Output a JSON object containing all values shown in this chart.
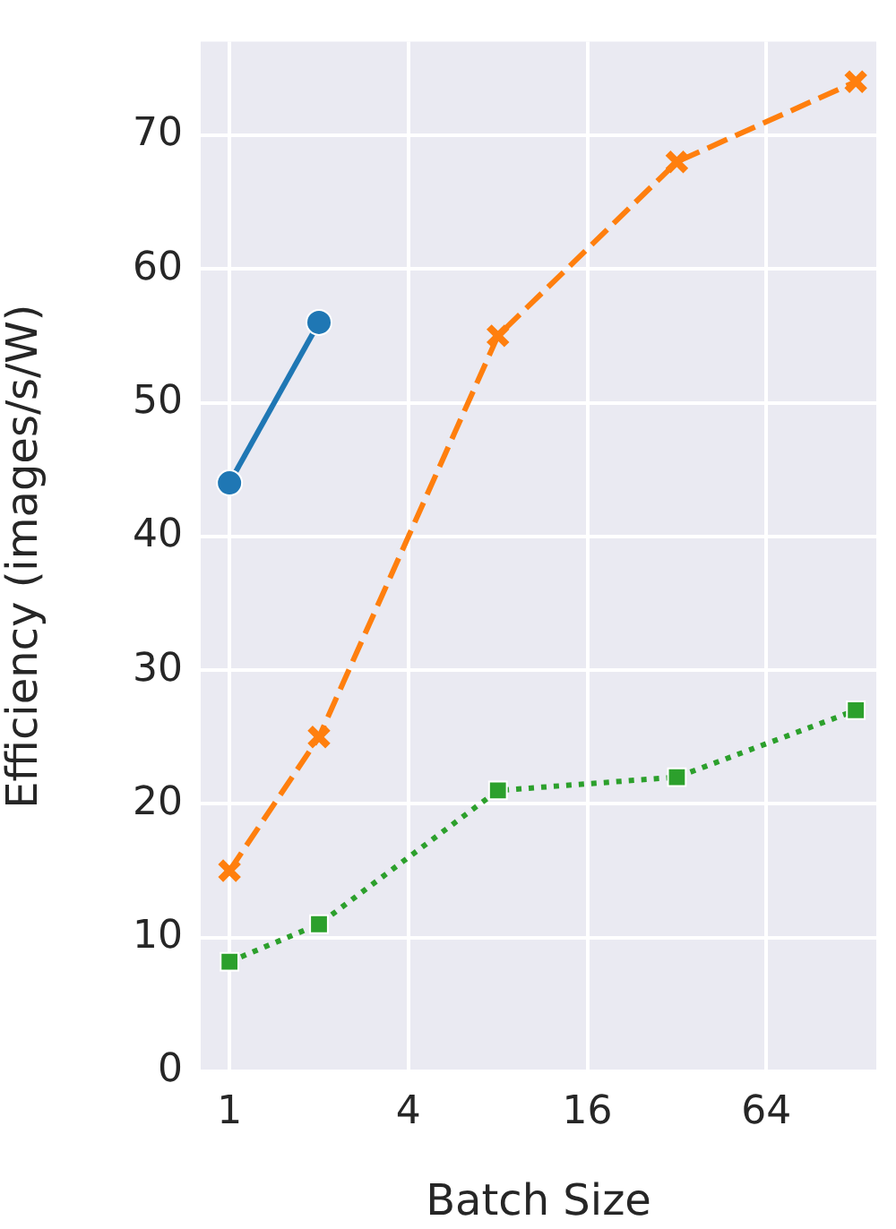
{
  "chart_data": {
    "type": "line",
    "xlabel": "Batch Size",
    "ylabel": "Efficiency (images/s/W)",
    "log": "x",
    "grid": true,
    "xlim": [
      0.8,
      150
    ],
    "xticks": [
      1,
      4,
      16,
      64
    ],
    "ylim": [
      0,
      77
    ],
    "yticks": [
      0,
      10,
      20,
      30,
      40,
      50,
      60,
      70
    ],
    "series": [
      {
        "color": "#1f77b4",
        "marker": "circle",
        "line_style": "solid",
        "x": [
          1,
          2
        ],
        "values": [
          44,
          56
        ]
      },
      {
        "color": "#ff7f0e",
        "marker": "cross",
        "line_style": "dashed",
        "x": [
          1,
          2,
          8,
          32,
          128
        ],
        "values": [
          15,
          25,
          55,
          68,
          74
        ]
      },
      {
        "color": "#2ca02c",
        "marker": "square",
        "line_style": "dotted",
        "x": [
          1,
          2,
          8,
          32,
          128
        ],
        "values": [
          8.2,
          11,
          21,
          22,
          27
        ]
      }
    ]
  }
}
